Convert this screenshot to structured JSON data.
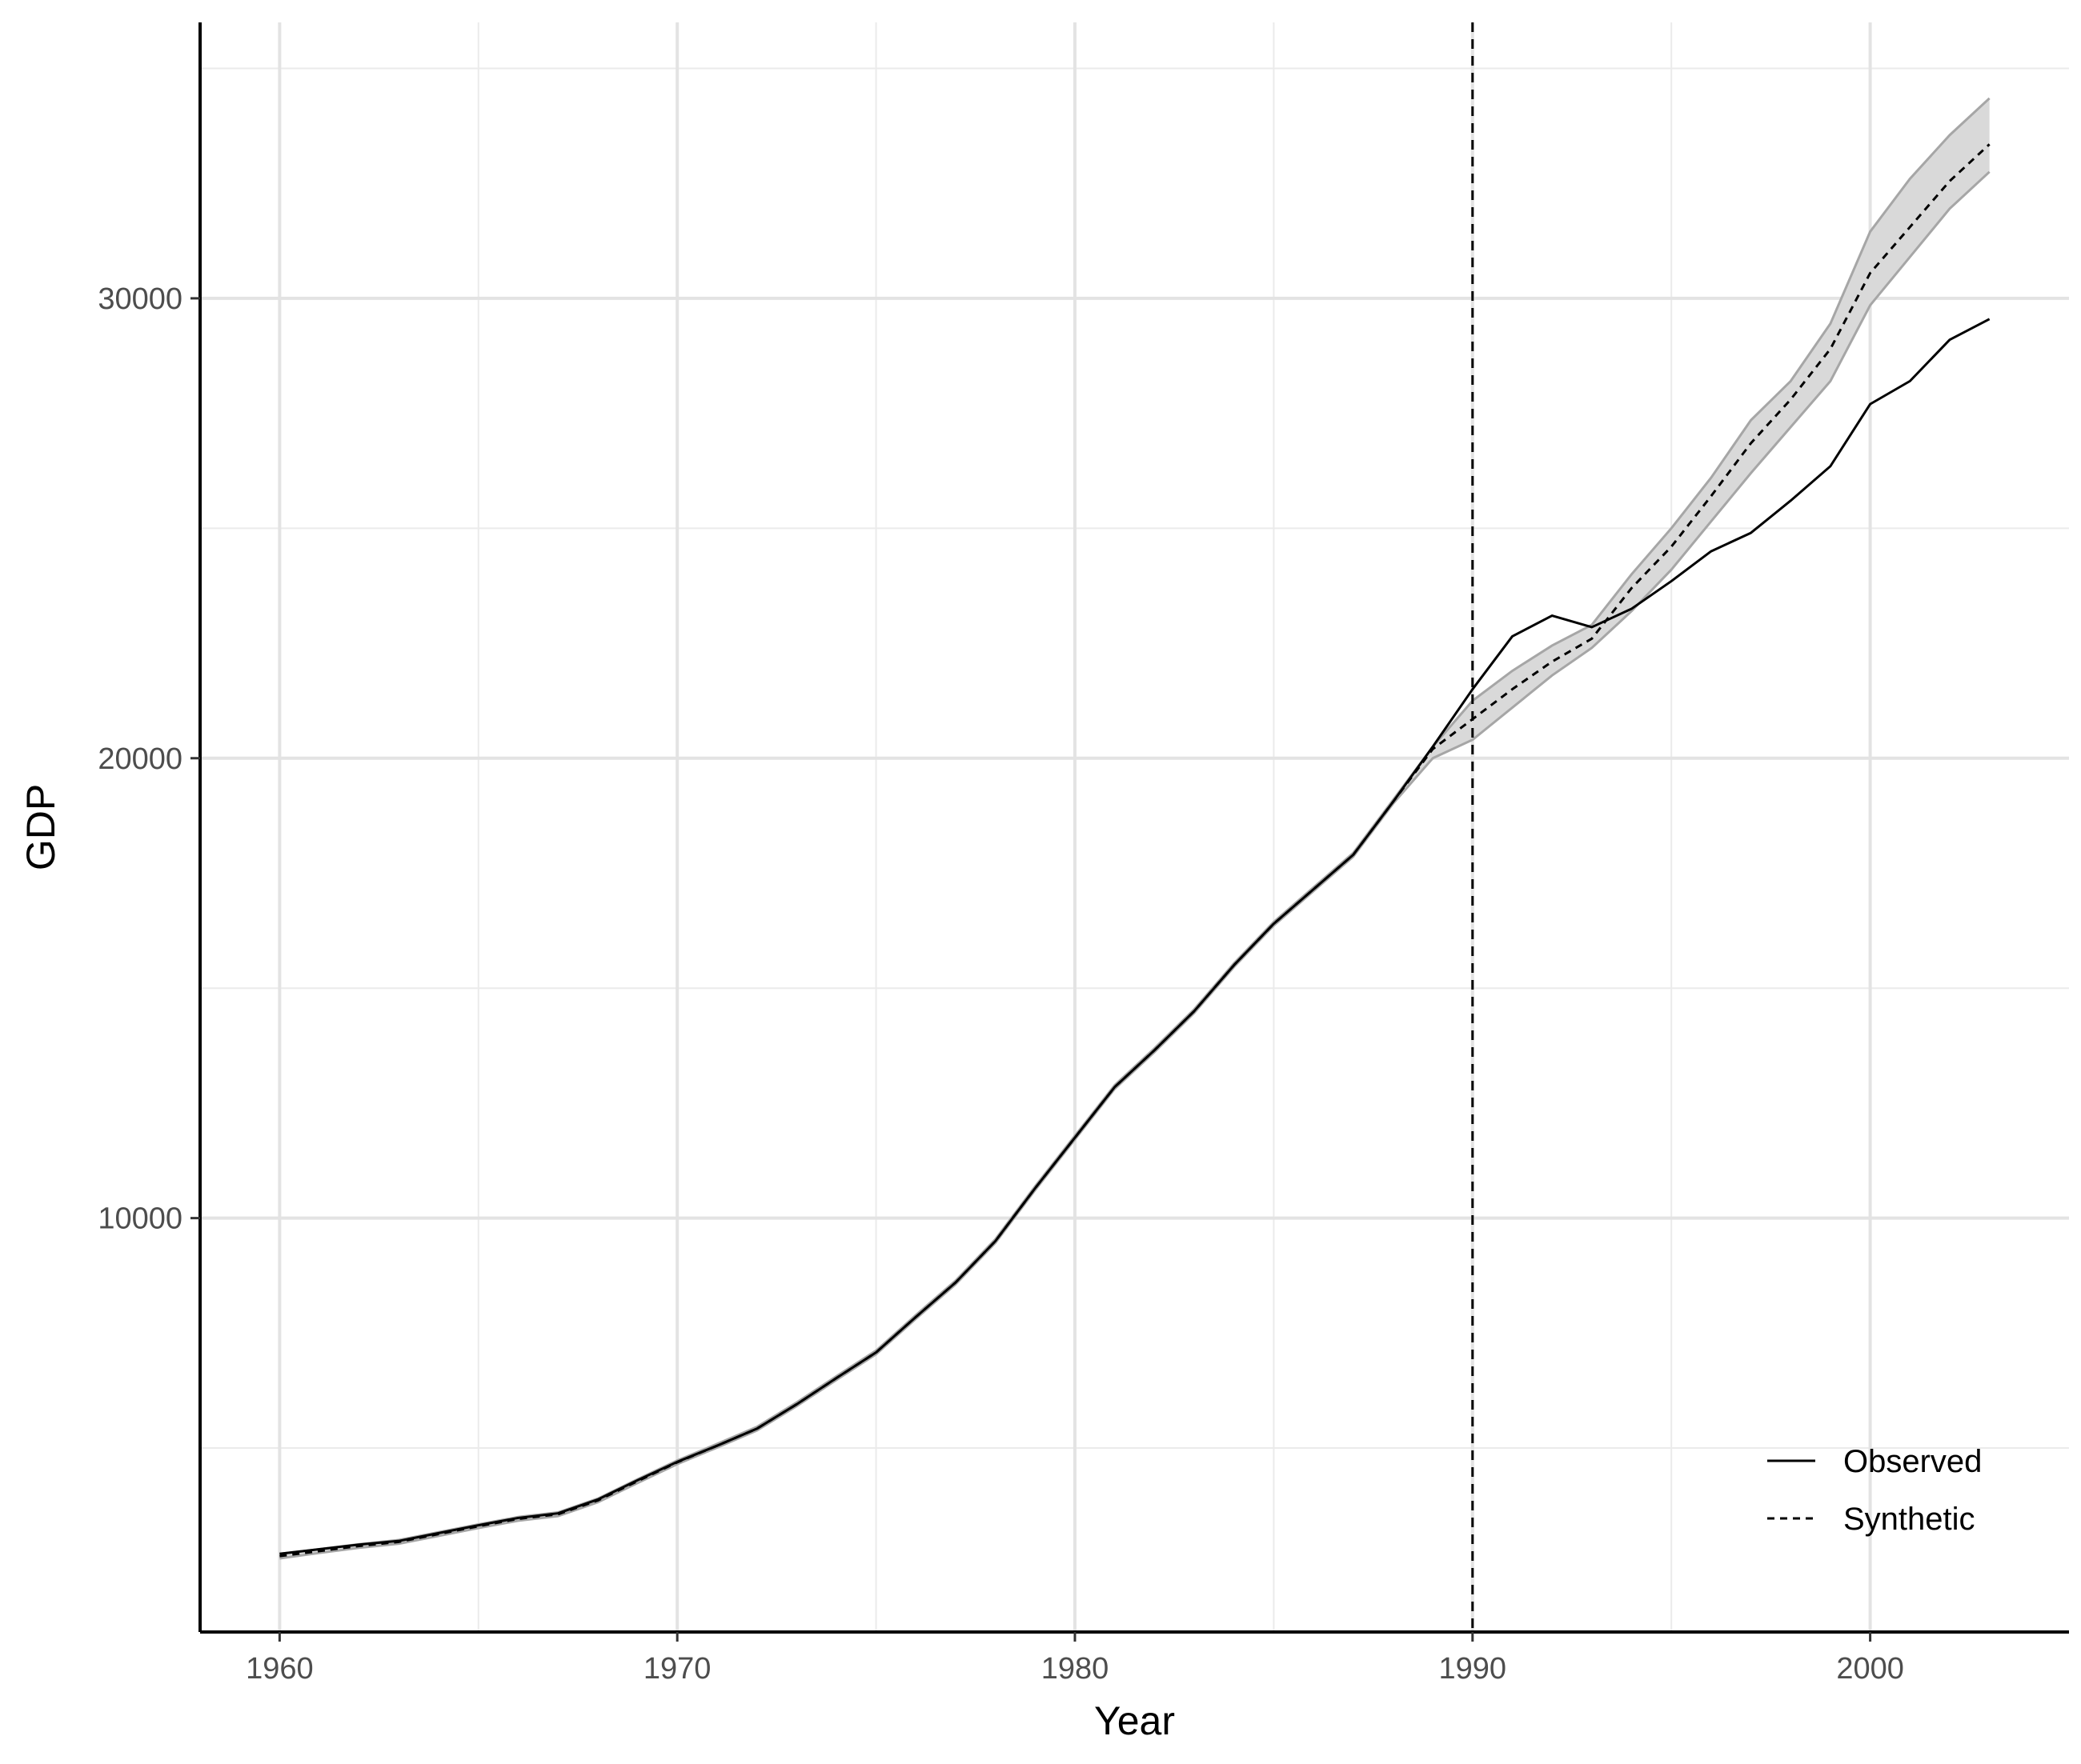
{
  "chart_data": {
    "type": "line",
    "title": "",
    "xlabel": "Year",
    "ylabel": "GDP",
    "xlim": [
      1958,
      2005
    ],
    "ylim": [
      1000,
      36000
    ],
    "xticks": [
      1960,
      1970,
      1980,
      1990,
      2000
    ],
    "xtick_labels": [
      "1960",
      "1970",
      "1980",
      "1990",
      "2000"
    ],
    "yticks": [
      10000,
      20000,
      30000
    ],
    "ytick_labels": [
      "10000",
      "20000",
      "30000"
    ],
    "minor_yticks": [
      5000,
      15000,
      25000,
      35000
    ],
    "minor_xticks": [
      1965,
      1975,
      1985,
      1995
    ],
    "grid": true,
    "legend_position": "bottom-right",
    "treatment_year": 1990,
    "x": [
      1960,
      1961,
      1962,
      1963,
      1964,
      1965,
      1966,
      1967,
      1968,
      1969,
      1970,
      1971,
      1972,
      1973,
      1974,
      1975,
      1976,
      1977,
      1978,
      1979,
      1980,
      1981,
      1982,
      1983,
      1984,
      1985,
      1986,
      1987,
      1988,
      1989,
      1990,
      1991,
      1992,
      1993,
      1994,
      1995,
      1996,
      1997,
      1998,
      1999,
      2000,
      2001,
      2002,
      2003
    ],
    "series": [
      {
        "name": "Observed",
        "dash": "solid",
        "values": [
          2700,
          2800,
          2900,
          2980,
          3150,
          3320,
          3480,
          3580,
          3880,
          4300,
          4700,
          5050,
          5420,
          5950,
          6520,
          7080,
          7850,
          8600,
          9500,
          10650,
          11750,
          12850,
          13650,
          14500,
          15500,
          16400,
          17150,
          17900,
          19050,
          20250,
          21500,
          22650,
          23100,
          22850,
          23250,
          23850,
          24500,
          24900,
          25600,
          26350,
          27700,
          28200,
          29100,
          29550
        ]
      },
      {
        "name": "Synthetic",
        "dash": "dashed",
        "values": [
          2650,
          2760,
          2870,
          2960,
          3130,
          3300,
          3460,
          3560,
          3860,
          4280,
          4690,
          5050,
          5420,
          5950,
          6520,
          7080,
          7850,
          8600,
          9500,
          10650,
          11750,
          12850,
          13650,
          14500,
          15500,
          16400,
          17150,
          17900,
          19050,
          20200,
          20850,
          21500,
          22100,
          22600,
          23700,
          24600,
          25700,
          26850,
          27800,
          28900,
          30550,
          31550,
          32550,
          33350
        ]
      }
    ],
    "band": {
      "lower": [
        2600,
        2720,
        2830,
        2920,
        3090,
        3260,
        3420,
        3520,
        3820,
        4240,
        4650,
        5010,
        5380,
        5910,
        6480,
        7040,
        7810,
        8560,
        9460,
        10610,
        11710,
        12810,
        13610,
        14460,
        15460,
        16360,
        17110,
        17860,
        19010,
        20000,
        20400,
        21100,
        21800,
        22400,
        23200,
        24100,
        25150,
        26200,
        27200,
        28200,
        29850,
        30900,
        31950,
        32750
      ],
      "upper": [
        2700,
        2800,
        2910,
        3000,
        3170,
        3340,
        3500,
        3600,
        3900,
        4320,
        4730,
        5090,
        5460,
        5990,
        6560,
        7120,
        7890,
        8640,
        9540,
        10690,
        11790,
        12890,
        13690,
        14540,
        15540,
        16440,
        17190,
        17940,
        19090,
        20250,
        21250,
        21900,
        22450,
        22900,
        24000,
        25000,
        26100,
        27350,
        28200,
        29450,
        31450,
        32600,
        33550,
        34350
      ]
    },
    "annotations": []
  }
}
